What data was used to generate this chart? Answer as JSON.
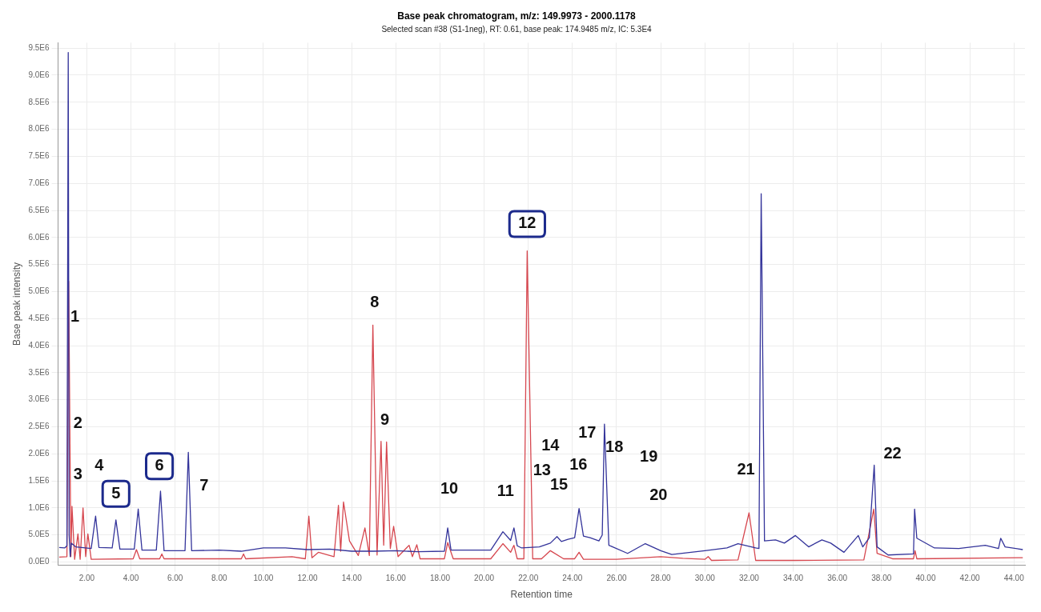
{
  "chart_data": {
    "type": "line",
    "title": "Base peak chromatogram, m/z: 149.9973 - 2000.1178",
    "subtitle": "Selected scan #38 (S1-1neg), RT: 0.61, base peak: 174.9485 m/z, IC: 5.3E4",
    "xlabel": "Retention time",
    "ylabel": "Base peak intensity",
    "xlim": [
      0.7,
      44.5
    ],
    "xticks": [
      {
        "value": 2,
        "label": "2.00"
      },
      {
        "value": 4,
        "label": "4.00"
      },
      {
        "value": 6,
        "label": "6.00"
      },
      {
        "value": 8,
        "label": "8.00"
      },
      {
        "value": 10,
        "label": "10.00"
      },
      {
        "value": 12,
        "label": "12.00"
      },
      {
        "value": 14,
        "label": "14.00"
      },
      {
        "value": 16,
        "label": "16.00"
      },
      {
        "value": 18,
        "label": "18.00"
      },
      {
        "value": 20,
        "label": "20.00"
      },
      {
        "value": 22,
        "label": "22.00"
      },
      {
        "value": 24,
        "label": "24.00"
      },
      {
        "value": 26,
        "label": "26.00"
      },
      {
        "value": 28,
        "label": "28.00"
      },
      {
        "value": 30,
        "label": "30.00"
      },
      {
        "value": 32,
        "label": "32.00"
      },
      {
        "value": 34,
        "label": "34.00"
      },
      {
        "value": 36,
        "label": "36.00"
      },
      {
        "value": 38,
        "label": "38.00"
      },
      {
        "value": 40,
        "label": "40.00"
      },
      {
        "value": 42,
        "label": "42.00"
      },
      {
        "value": 44,
        "label": "44.00"
      }
    ],
    "ylim": [
      -60000,
      9600000
    ],
    "yticks": [
      {
        "value": 0,
        "label": "0.0E0"
      },
      {
        "value": 500000,
        "label": "5.0E5"
      },
      {
        "value": 1000000,
        "label": "1.0E6"
      },
      {
        "value": 1500000,
        "label": "1.5E6"
      },
      {
        "value": 2000000,
        "label": "2.0E6"
      },
      {
        "value": 2500000,
        "label": "2.5E6"
      },
      {
        "value": 3000000,
        "label": "3.0E6"
      },
      {
        "value": 3500000,
        "label": "3.5E6"
      },
      {
        "value": 4000000,
        "label": "4.0E6"
      },
      {
        "value": 4500000,
        "label": "4.5E6"
      },
      {
        "value": 5000000,
        "label": "5.0E6"
      },
      {
        "value": 5500000,
        "label": "5.5E6"
      },
      {
        "value": 6000000,
        "label": "6.0E6"
      },
      {
        "value": 6500000,
        "label": "6.5E6"
      },
      {
        "value": 7000000,
        "label": "7.0E6"
      },
      {
        "value": 7500000,
        "label": "7.5E6"
      },
      {
        "value": 8000000,
        "label": "8.0E6"
      },
      {
        "value": 8500000,
        "label": "8.5E6"
      },
      {
        "value": 9000000,
        "label": "9.0E6"
      },
      {
        "value": 9500000,
        "label": "9.5E6"
      }
    ],
    "grid": true,
    "legend": false,
    "marker": "none",
    "line_style": "solid",
    "series": [
      {
        "color": "#33339a",
        "x": [
          0.75,
          1.0,
          1.1,
          1.16,
          1.2,
          1.25,
          1.3,
          1.5,
          2.2,
          2.4,
          2.55,
          3.15,
          3.32,
          3.5,
          4.15,
          4.33,
          4.5,
          5.15,
          5.34,
          5.5,
          6.45,
          6.6,
          6.75,
          8.0,
          9.0,
          10.0,
          11.0,
          12.0,
          13.0,
          14.0,
          15.0,
          16.0,
          17.0,
          18.2,
          18.35,
          18.5,
          19.2,
          20.3,
          20.85,
          21.2,
          21.35,
          21.5,
          21.7,
          22.5,
          23.0,
          23.3,
          23.5,
          23.8,
          24.1,
          24.3,
          24.5,
          24.8,
          25.2,
          25.35,
          25.45,
          25.65,
          26.5,
          27.3,
          28.0,
          28.5,
          30.0,
          31.0,
          31.5,
          32.3,
          32.45,
          32.55,
          32.7,
          33.2,
          33.6,
          34.1,
          34.7,
          35.3,
          35.7,
          36.3,
          36.95,
          37.15,
          37.45,
          37.67,
          37.8,
          38.3,
          39.45,
          39.5,
          39.6,
          40.4,
          41.5,
          42.7,
          43.3,
          43.4,
          43.6,
          44.4
        ],
        "values": [
          270000,
          260000,
          300000,
          9420000,
          500000,
          100000,
          350000,
          280000,
          250000,
          850000,
          270000,
          260000,
          780000,
          240000,
          240000,
          980000,
          220000,
          220000,
          1310000,
          210000,
          210000,
          2030000,
          210000,
          220000,
          200000,
          260000,
          260000,
          230000,
          240000,
          200000,
          200000,
          210000,
          190000,
          200000,
          630000,
          220000,
          220000,
          220000,
          560000,
          400000,
          630000,
          300000,
          260000,
          280000,
          350000,
          470000,
          380000,
          420000,
          450000,
          990000,
          480000,
          450000,
          390000,
          500000,
          2550000,
          310000,
          160000,
          340000,
          210000,
          140000,
          210000,
          260000,
          340000,
          260000,
          250000,
          6810000,
          390000,
          410000,
          350000,
          490000,
          280000,
          410000,
          350000,
          180000,
          490000,
          280000,
          450000,
          1790000,
          280000,
          130000,
          150000,
          980000,
          440000,
          260000,
          250000,
          310000,
          250000,
          440000,
          280000,
          230000
        ]
      },
      {
        "color": "#d6474f",
        "x": [
          0.75,
          1.1,
          1.18,
          1.28,
          1.33,
          1.45,
          1.6,
          1.7,
          1.83,
          1.95,
          2.05,
          2.2,
          4.1,
          4.25,
          4.4,
          5.3,
          5.4,
          5.5,
          9.0,
          9.1,
          9.2,
          11.3,
          11.9,
          12.06,
          12.2,
          12.5,
          13.2,
          13.4,
          13.5,
          13.63,
          13.9,
          14.3,
          14.6,
          14.8,
          14.96,
          15.15,
          15.33,
          15.45,
          15.58,
          15.75,
          15.9,
          16.1,
          16.6,
          16.75,
          16.95,
          17.1,
          18.2,
          18.35,
          18.6,
          20.3,
          20.85,
          21.2,
          21.35,
          21.5,
          21.8,
          21.95,
          22.2,
          22.6,
          23.0,
          23.6,
          24.1,
          24.3,
          24.5,
          26.0,
          28.0,
          29.0,
          30.0,
          30.15,
          30.3,
          31.5,
          32.0,
          32.3,
          34.0,
          37.2,
          37.65,
          37.8,
          38.5,
          39.45,
          39.52,
          39.6,
          44.4
        ],
        "values": [
          90000,
          100000,
          5190000,
          100000,
          1030000,
          50000,
          520000,
          50000,
          1000000,
          100000,
          520000,
          50000,
          60000,
          230000,
          60000,
          60000,
          150000,
          60000,
          60000,
          150000,
          60000,
          100000,
          60000,
          850000,
          80000,
          180000,
          100000,
          1050000,
          200000,
          1110000,
          390000,
          120000,
          630000,
          120000,
          4380000,
          130000,
          2230000,
          310000,
          2220000,
          250000,
          660000,
          100000,
          310000,
          100000,
          320000,
          60000,
          60000,
          360000,
          60000,
          60000,
          340000,
          180000,
          310000,
          60000,
          60000,
          5750000,
          60000,
          60000,
          210000,
          60000,
          60000,
          180000,
          50000,
          50000,
          100000,
          70000,
          50000,
          100000,
          30000,
          40000,
          910000,
          30000,
          30000,
          40000,
          980000,
          160000,
          60000,
          60000,
          210000,
          60000,
          80000
        ]
      }
    ],
    "annotations": [
      "1",
      "2",
      "3",
      "4",
      "5",
      "6",
      "7",
      "8",
      "9",
      "10",
      "11",
      "12",
      "13",
      "14",
      "15",
      "16",
      "17",
      "18",
      "19",
      "20",
      "21",
      "22"
    ]
  }
}
